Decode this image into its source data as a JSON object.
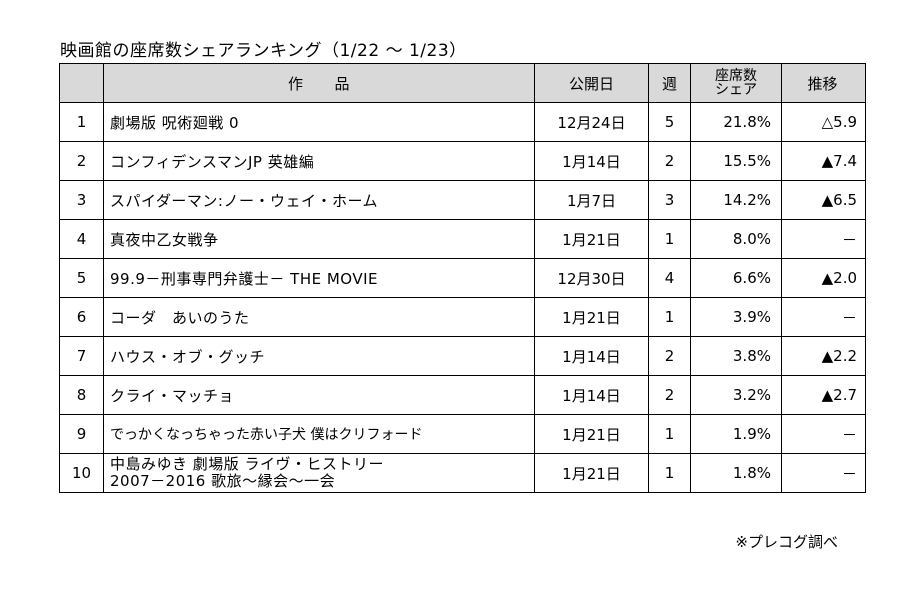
{
  "title": "映画館の座席数シェアランキング（1/22 ～ 1/23）",
  "headers": {
    "rank": "",
    "title": "作　　品",
    "release": "公開日",
    "week": "週",
    "share_line1": "座席数",
    "share_line2": "シェア",
    "trend": "推移"
  },
  "rows": [
    {
      "rank": "1",
      "title": "劇場版 呪術廻戦 0",
      "release": "12月24日",
      "week": "5",
      "share": "21.8%",
      "trend": "△5.9"
    },
    {
      "rank": "2",
      "title": "コンフィデンスマンJP 英雄編",
      "release": "1月14日",
      "week": "2",
      "share": "15.5%",
      "trend": "▲7.4"
    },
    {
      "rank": "3",
      "title": "スパイダーマン:ノー・ウェイ・ホーム",
      "release": "1月7日",
      "week": "3",
      "share": "14.2%",
      "trend": "▲6.5"
    },
    {
      "rank": "4",
      "title": "真夜中乙女戦争",
      "release": "1月21日",
      "week": "1",
      "share": "8.0%",
      "trend": "－"
    },
    {
      "rank": "5",
      "title": "99.9－刑事専門弁護士－ THE MOVIE",
      "release": "12月30日",
      "week": "4",
      "share": "6.6%",
      "trend": "▲2.0"
    },
    {
      "rank": "6",
      "title": "コーダ　あいのうた",
      "release": "1月21日",
      "week": "1",
      "share": "3.9%",
      "trend": "－"
    },
    {
      "rank": "7",
      "title": "ハウス・オブ・グッチ",
      "release": "1月14日",
      "week": "2",
      "share": "3.8%",
      "trend": "▲2.2"
    },
    {
      "rank": "8",
      "title": "クライ・マッチョ",
      "release": "1月14日",
      "week": "2",
      "share": "3.2%",
      "trend": "▲2.7"
    },
    {
      "rank": "9",
      "title": "でっかくなっちゃった赤い子犬 僕はクリフォード",
      "release": "1月21日",
      "week": "1",
      "share": "1.9%",
      "trend": "－"
    },
    {
      "rank": "10",
      "title_line1": "中島みゆき 劇場版 ライヴ・ヒストリー",
      "title_line2": "2007－2016 歌旅～縁会～一会",
      "release": "1月21日",
      "week": "1",
      "share": "1.8%",
      "trend": "－"
    }
  ],
  "note": "※プレコグ調べ"
}
